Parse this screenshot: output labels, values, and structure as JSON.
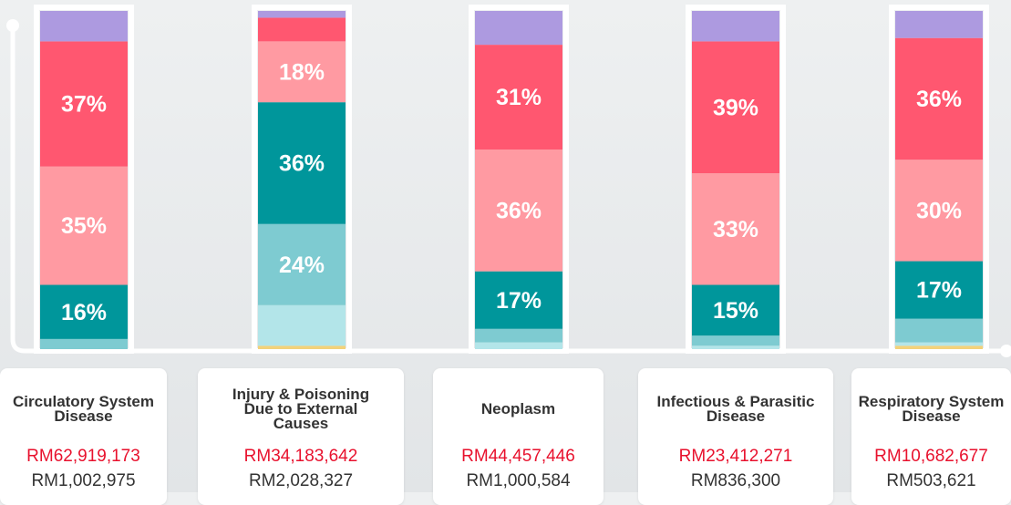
{
  "chart_data": {
    "type": "stacked_bar",
    "categories": [
      "Circulatory System Disease",
      "Injury & Poisoning Due to External Causes",
      "Neoplasm",
      "Infectious & Parasitic Disease",
      "Respiratory System Disease"
    ],
    "amounts_red": [
      "RM62,919,173",
      "RM34,183,642",
      "RM44,457,446",
      "RM23,412,271",
      "RM10,682,677"
    ],
    "amounts_black": [
      "RM1,002,975",
      "RM2,028,327",
      "RM1,000,584",
      "RM836,300",
      "RM503,621"
    ],
    "ylim": [
      0,
      100
    ],
    "series": [
      {
        "color": "#f2d27a",
        "values": [
          0,
          1,
          0,
          0,
          1
        ],
        "value_labels": [
          null,
          null,
          null,
          null,
          null
        ]
      },
      {
        "color": "#b3e5e9",
        "values": [
          0,
          12,
          2,
          1,
          1
        ],
        "value_labels": [
          null,
          null,
          null,
          null,
          null
        ]
      },
      {
        "color": "#7ecbd1",
        "values": [
          3,
          24,
          4,
          3,
          7
        ],
        "value_labels": [
          null,
          "24%",
          null,
          null,
          null
        ]
      },
      {
        "color": "#00969b",
        "values": [
          16,
          36,
          17,
          15,
          17
        ],
        "value_labels": [
          "16%",
          "36%",
          "17%",
          "15%",
          "17%"
        ]
      },
      {
        "color": "#ff9aa2",
        "values": [
          35,
          18,
          36,
          33,
          30
        ],
        "value_labels": [
          "35%",
          "18%",
          "36%",
          "33%",
          "30%"
        ]
      },
      {
        "color": "#ff5770",
        "values": [
          37,
          7,
          31,
          39,
          36
        ],
        "value_labels": [
          "37%",
          null,
          "31%",
          "39%",
          "36%"
        ]
      },
      {
        "color": "#ad9ae0",
        "values": [
          9,
          2,
          10,
          9,
          8
        ],
        "value_labels": [
          null,
          null,
          null,
          null,
          null
        ]
      }
    ]
  }
}
